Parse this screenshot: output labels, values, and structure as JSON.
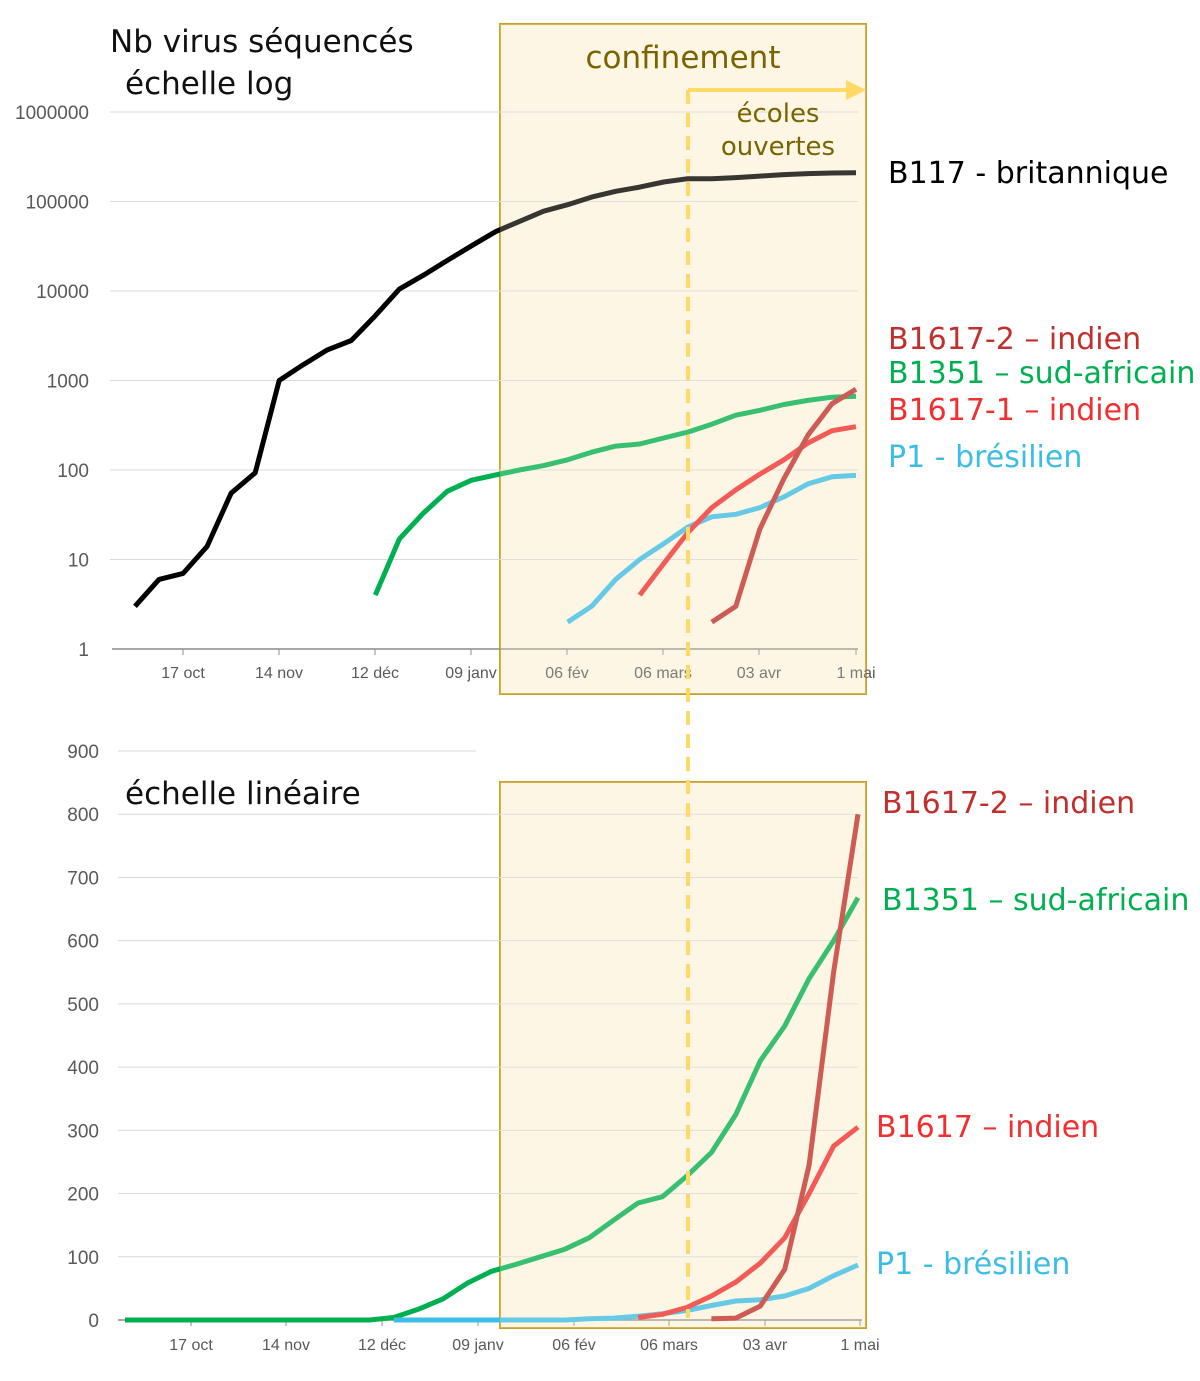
{
  "chart_data": [
    {
      "type": "line",
      "title": "Nb virus séquencés",
      "subtitle": "échelle log",
      "yscale": "log",
      "ylim": [
        1,
        1000000
      ],
      "yticks": [
        "1",
        "10",
        "100",
        "1000",
        "10000",
        "100000",
        "1000000"
      ],
      "x_tick_labels": [
        "17 oct",
        "14 nov",
        "12 déc",
        "09 janv",
        "06 fév",
        "06 mars",
        "03 avr",
        "1 mai"
      ],
      "shaded_period_label": "confinement",
      "arrow_label": [
        "écoles",
        "ouvertes"
      ],
      "series": [
        {
          "name": "B117 - britannique",
          "color": "#000000",
          "x": [
            0,
            1,
            2,
            3,
            4,
            5,
            6,
            7,
            8,
            9,
            10,
            11,
            12,
            13,
            14,
            15,
            16,
            17,
            18,
            19,
            20,
            21,
            22,
            23,
            24,
            25,
            26,
            27,
            28,
            29,
            30
          ],
          "y": [
            3,
            6,
            7,
            14,
            55,
            93,
            1000,
            1500,
            2200,
            2800,
            5300,
            10500,
            15000,
            22000,
            32000,
            46000,
            60000,
            78000,
            92000,
            112000,
            130000,
            145000,
            165000,
            180000,
            180000,
            185000,
            192000,
            200000,
            205000,
            208000,
            210000
          ]
        },
        {
          "name": "B1351 – sud-africain",
          "color": "#00b050",
          "x": [
            10,
            11,
            12,
            13,
            14,
            15,
            16,
            17,
            18,
            19,
            20,
            21,
            22,
            23,
            24,
            25,
            26,
            27,
            28,
            29,
            30
          ],
          "y": [
            4,
            17,
            33,
            58,
            77,
            88,
            100,
            112,
            130,
            158,
            185,
            195,
            228,
            265,
            325,
            410,
            465,
            540,
            600,
            650,
            668
          ]
        },
        {
          "name": "P1 - brésilien",
          "color": "#3cbde6",
          "x": [
            18,
            19,
            20,
            21,
            22,
            23,
            24,
            25,
            26,
            27,
            28,
            29,
            30
          ],
          "y": [
            2,
            3,
            6,
            10,
            15,
            23,
            30,
            32,
            38,
            50,
            70,
            84,
            87
          ]
        },
        {
          "name": "B1617-1 – indien",
          "color": "#f03030",
          "x": [
            21,
            22,
            23,
            24,
            25,
            26,
            27,
            28,
            29,
            30
          ],
          "y": [
            4,
            9,
            20,
            38,
            60,
            90,
            130,
            200,
            275,
            305
          ]
        },
        {
          "name": "B1617-2 – indien",
          "color": "#c0302c",
          "x": [
            24,
            25,
            26,
            27,
            28,
            29,
            30
          ],
          "y": [
            2,
            3,
            22,
            80,
            245,
            550,
            800
          ]
        }
      ]
    },
    {
      "type": "line",
      "title": "échelle linéaire",
      "yscale": "linear",
      "ylim": [
        0,
        900
      ],
      "yticks": [
        "0",
        "100",
        "200",
        "300",
        "400",
        "500",
        "600",
        "700",
        "800",
        "900"
      ],
      "x_tick_labels": [
        "17 oct",
        "14 nov",
        "12 déc",
        "09 janv",
        "06 fév",
        "06 mars",
        "03 avr",
        "1 mai"
      ],
      "series": [
        {
          "name": "B1351 – sud-africain",
          "color": "#00b050",
          "x": [
            0,
            1,
            2,
            3,
            4,
            5,
            6,
            7,
            8,
            9,
            10,
            11,
            12,
            13,
            14,
            15,
            16,
            17,
            18,
            19,
            20,
            21,
            22,
            23,
            24,
            25,
            26,
            27,
            28,
            29,
            30
          ],
          "y": [
            0,
            0,
            0,
            0,
            0,
            0,
            0,
            0,
            0,
            0,
            0,
            4,
            17,
            33,
            58,
            77,
            88,
            100,
            112,
            130,
            158,
            185,
            195,
            228,
            265,
            325,
            410,
            465,
            540,
            600,
            668
          ]
        },
        {
          "name": "P1 - brésilien",
          "color": "#3cbde6",
          "x": [
            11,
            12,
            13,
            14,
            15,
            16,
            17,
            18,
            19,
            20,
            21,
            22,
            23,
            24,
            25,
            26,
            27,
            28,
            29,
            30
          ],
          "y": [
            0,
            0,
            0,
            0,
            0,
            0,
            0,
            0,
            2,
            3,
            6,
            10,
            15,
            23,
            30,
            32,
            38,
            50,
            70,
            87
          ]
        },
        {
          "name": "B1617 – indien",
          "color": "#f03030",
          "x": [
            21,
            22,
            23,
            24,
            25,
            26,
            27,
            28,
            29,
            30
          ],
          "y": [
            4,
            9,
            20,
            38,
            60,
            90,
            130,
            200,
            275,
            305
          ]
        },
        {
          "name": "B1617-2 – indien",
          "color": "#c0302c",
          "x": [
            24,
            25,
            26,
            27,
            28,
            29,
            30
          ],
          "y": [
            2,
            3,
            22,
            80,
            245,
            550,
            800
          ]
        }
      ]
    }
  ],
  "labels": {
    "top_b117": "B117 - britannique",
    "top_b16172": "B1617-2 – indien",
    "top_b1351": "B1351 – sud-africain",
    "top_b16171": "B1617-1 – indien",
    "top_p1": "P1 - brésilien",
    "bot_b16172": "B1617-2 – indien",
    "bot_b1351": "B1351 – sud-africain",
    "bot_b1617": "B1617 – indien",
    "bot_p1": "P1 - brésilien"
  },
  "colors": {
    "shade": "#fdf6e4",
    "shade_border": "#c9a227",
    "dashed_line": "#ffd966",
    "annotation_text": "#7a6400"
  }
}
